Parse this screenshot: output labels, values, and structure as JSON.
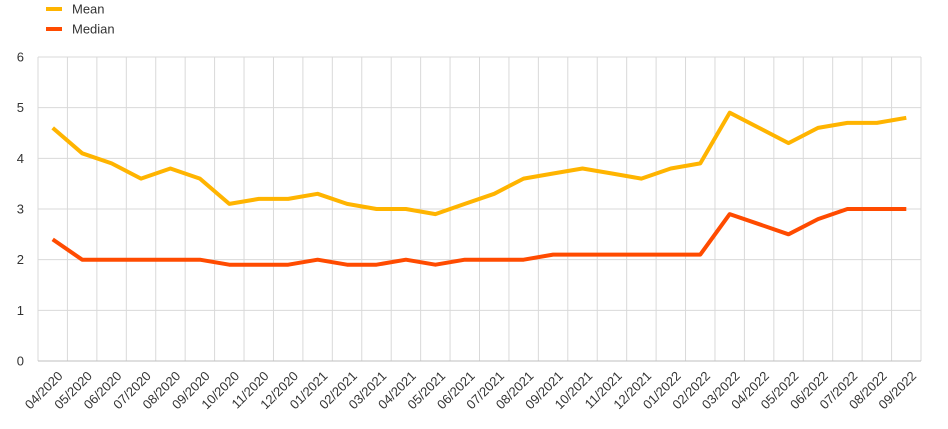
{
  "chart_data": {
    "type": "line",
    "title": "",
    "xlabel": "",
    "ylabel": "",
    "ylim": [
      0,
      6
    ],
    "yticks": [
      0,
      1,
      2,
      3,
      4,
      5,
      6
    ],
    "grid": true,
    "legend_position": "top-left",
    "categories": [
      "04/2020",
      "05/2020",
      "06/2020",
      "07/2020",
      "08/2020",
      "09/2020",
      "10/2020",
      "11/2020",
      "12/2020",
      "01/2021",
      "02/2021",
      "03/2021",
      "04/2021",
      "05/2021",
      "06/2021",
      "07/2021",
      "08/2021",
      "09/2021",
      "10/2021",
      "11/2021",
      "12/2021",
      "01/2022",
      "02/2022",
      "03/2022",
      "04/2022",
      "05/2022",
      "06/2022",
      "07/2022",
      "08/2022",
      "09/2022"
    ],
    "series": [
      {
        "name": "Mean",
        "color": "#FFB400",
        "values": [
          4.6,
          4.1,
          3.9,
          3.6,
          3.8,
          3.6,
          3.1,
          3.2,
          3.2,
          3.3,
          3.1,
          3.0,
          3.0,
          2.9,
          3.1,
          3.3,
          3.6,
          3.7,
          3.8,
          3.7,
          3.6,
          3.8,
          3.9,
          4.9,
          4.6,
          4.3,
          4.6,
          4.7,
          4.7,
          4.8
        ]
      },
      {
        "name": "Median",
        "color": "#FF4B00",
        "values": [
          2.4,
          2.0,
          2.0,
          2.0,
          2.0,
          2.0,
          1.9,
          1.9,
          1.9,
          2.0,
          1.9,
          1.9,
          2.0,
          1.9,
          2.0,
          2.0,
          2.0,
          2.1,
          2.1,
          2.1,
          2.1,
          2.1,
          2.1,
          2.9,
          2.7,
          2.5,
          2.8,
          3.0,
          3.0,
          3.0
        ]
      }
    ]
  }
}
